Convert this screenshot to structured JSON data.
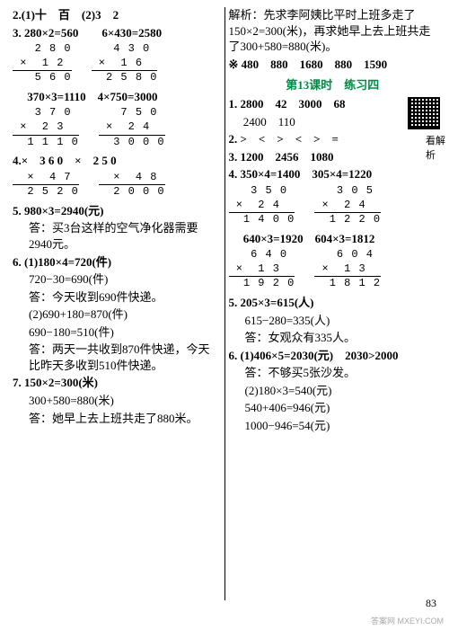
{
  "left": {
    "q2": "2.(1)十　百　(2)3　2",
    "q3_head": "3. 280×2=560　　6×430=2580",
    "q3_calc": [
      {
        "a": "   2 8 0",
        "b": " ×  1 2",
        "c": "   5 6 0"
      },
      {
        "a": "   4 3 0",
        "b": " ×  1 6",
        "c": "  2 5 8 0"
      }
    ],
    "q3_head2": "　 370×3=1110　4×750=3000",
    "q3_calc2": [
      {
        "a": "   3 7 0",
        "b": " ×  2 3",
        "c": "  1 1 1 0"
      },
      {
        "a": "   7 5 0",
        "b": " ×  2 4",
        "c": "  3 0 0 0"
      }
    ],
    "q4_head": "4.×　3 6 0　×　2 5 0",
    "q4_calc": [
      {
        "a": "  ×  4 7",
        "b": "  2 5 2 0"
      },
      {
        "a": "  ×  4 8",
        "b": "  2 0 0 0"
      }
    ],
    "q5_a": "5. 980×3=2940(元)",
    "q5_b": "答：买3台这样的空气净化器需要2940元。",
    "q6_1a": "6. (1)180×4=720(件)",
    "q6_1b": "720−30=690(件)",
    "q6_1c": "答：今天收到690件快递。",
    "q6_2a": "(2)690+180=870(件)",
    "q6_2b": "690−180=510(件)",
    "q6_2c": "答：两天一共收到870件快递，今天比昨天多收到510件快递。",
    "q7_a": "7. 150×2=300(米)",
    "q7_b": "300+580=880(米)",
    "q7_c": "答：她早上去上班共走了880米。"
  },
  "right": {
    "intro1": "解析：先求李阿姨比平时上班多走了150×2=300(米)，再求她早上去上班共走了300+580=880(米)。",
    "star": "※ 480　880　1680　880　1590",
    "title": "第13课时　练习四",
    "qr_label": "看解析",
    "q1a": "1. 2800　42　3000　68",
    "q1b": "　 2400　110",
    "q2": "2. >　<　>　<　>　=",
    "q3": "3. 1200　2456　1080",
    "q4_head": "4. 350×4=1400　305×4=1220",
    "q4_calc": [
      {
        "a": "   3 5 0",
        "b": " ×  2 4",
        "c": "  1 4 0 0"
      },
      {
        "a": "   3 0 5",
        "b": " ×  2 4",
        "c": "  1 2 2 0"
      }
    ],
    "q4_head2": "　 640×3=1920　604×3=1812",
    "q4_calc2": [
      {
        "a": "   6 4 0",
        "b": " ×  1 3",
        "c": "  1 9 2 0"
      },
      {
        "a": "   6 0 4",
        "b": " ×  1 3",
        "c": "  1 8 1 2"
      }
    ],
    "q5a": "5. 205×3=615(人)",
    "q5b": "615−280=335(人)",
    "q5c": "答：女观众有335人。",
    "q6a": "6. (1)406×5=2030(元)　2030>2000",
    "q6b": "答：不够买5张沙发。",
    "q6c": "(2)180×3=540(元)",
    "q6d": "540+406=946(元)",
    "q6e": "1000−946=54(元)"
  },
  "pagenum": "83",
  "watermark": "答案网 MXEYI.COM"
}
